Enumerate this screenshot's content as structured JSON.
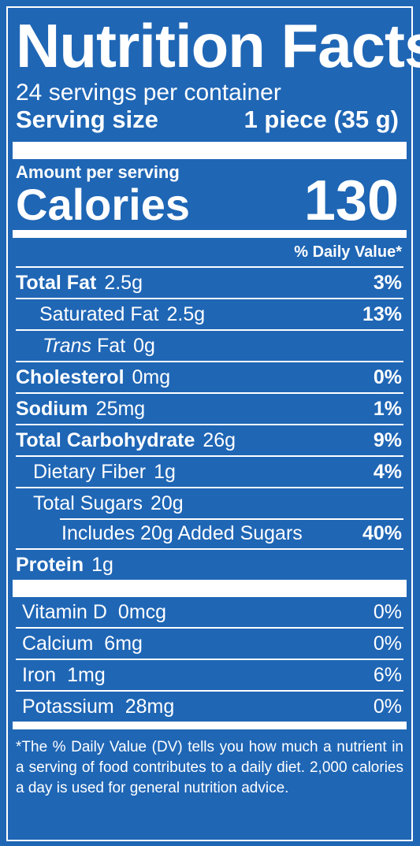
{
  "title": "Nutrition Facts",
  "servings_per_container": "24 servings per container",
  "serving_size_label": "Serving size",
  "serving_size_value": "1 piece (35 g)",
  "amount_per_serving": "Amount per serving",
  "calories_label": "Calories",
  "calories_value": "130",
  "daily_value_header": "% Daily Value*",
  "nutrients": {
    "total_fat": {
      "name": "Total Fat",
      "amount": "2.5g",
      "dv": "3%"
    },
    "saturated_fat": {
      "name": "Saturated Fat",
      "amount": "2.5g",
      "dv": "13%"
    },
    "trans_fat": {
      "name_italic": "Trans",
      "name": "Fat",
      "amount": "0g"
    },
    "cholesterol": {
      "name": "Cholesterol",
      "amount": "0mg",
      "dv": "0%"
    },
    "sodium": {
      "name": "Sodium",
      "amount": "25mg",
      "dv": "1%"
    },
    "total_carbohydrate": {
      "name": "Total Carbohydrate",
      "amount": "26g",
      "dv": "9%"
    },
    "dietary_fiber": {
      "name": "Dietary Fiber",
      "amount": "1g",
      "dv": "4%"
    },
    "total_sugars": {
      "name": "Total Sugars",
      "amount": "20g"
    },
    "added_sugars": {
      "text": "Includes 20g Added Sugars",
      "dv": "40%"
    },
    "protein": {
      "name": "Protein",
      "amount": "1g"
    }
  },
  "vitamins": {
    "vitamin_d": {
      "name": "Vitamin D",
      "amount": "0mcg",
      "dv": "0%"
    },
    "calcium": {
      "name": "Calcium",
      "amount": "6mg",
      "dv": "0%"
    },
    "iron": {
      "name": "Iron",
      "amount": "1mg",
      "dv": "6%"
    },
    "potassium": {
      "name": "Potassium",
      "amount": "28mg",
      "dv": "0%"
    }
  },
  "footnote": "*The % Daily Value (DV) tells you how much a nutrient in a serving of food contributes to a daily diet. 2,000 calories a day is used for general nutrition advice.",
  "colors": {
    "background": "#1f66b5",
    "foreground": "#ffffff"
  }
}
